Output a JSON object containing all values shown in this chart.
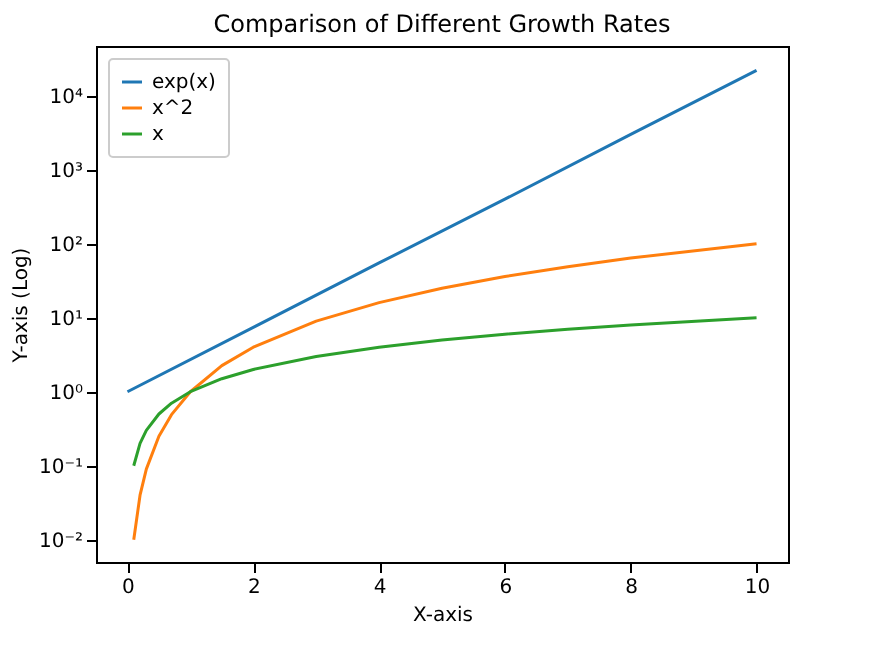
{
  "chart_data": {
    "type": "line",
    "title": "Comparison of Different Growth Rates",
    "xlabel": "X-axis",
    "ylabel": "Y-axis (Log)",
    "log": "y",
    "grid": false,
    "legend": "top left",
    "xlim": [
      -0.5,
      10.5
    ],
    "xticks": [
      0,
      2,
      4,
      6,
      8,
      10
    ],
    "ylim": [
      0.005,
      47000
    ],
    "yticks": [
      {
        "value": 0.01,
        "label": "10⁻²"
      },
      {
        "value": 0.1,
        "label": "10⁻¹"
      },
      {
        "value": 1,
        "label": "10⁰"
      },
      {
        "value": 10,
        "label": "10¹"
      },
      {
        "value": 100,
        "label": "10²"
      },
      {
        "value": 1000,
        "label": "10³"
      },
      {
        "value": 10000,
        "label": "10⁴"
      }
    ],
    "series": [
      {
        "name": "exp(x)",
        "color": "#1f77b4",
        "x": [
          0,
          2,
          4,
          6,
          8,
          10
        ],
        "values": [
          1,
          7.4,
          55,
          400,
          3000,
          22000
        ]
      },
      {
        "name": "x^2",
        "color": "#ff7f0e",
        "x": [
          0.1,
          0.2,
          0.3,
          0.5,
          0.7,
          1,
          1.5,
          2,
          3,
          4,
          5,
          6,
          7,
          8,
          10
        ],
        "values": [
          0.01,
          0.04,
          0.09,
          0.25,
          0.49,
          1,
          2.25,
          4,
          9,
          16,
          25,
          36,
          49,
          64,
          100
        ]
      },
      {
        "name": "x",
        "color": "#2ca02c",
        "x": [
          0.1,
          0.2,
          0.3,
          0.5,
          0.7,
          1,
          1.5,
          2,
          3,
          4,
          5,
          6,
          7,
          8,
          10
        ],
        "values": [
          0.1,
          0.2,
          0.3,
          0.5,
          0.7,
          1,
          1.5,
          2,
          3,
          4,
          5,
          6,
          7,
          8,
          10
        ]
      }
    ]
  }
}
